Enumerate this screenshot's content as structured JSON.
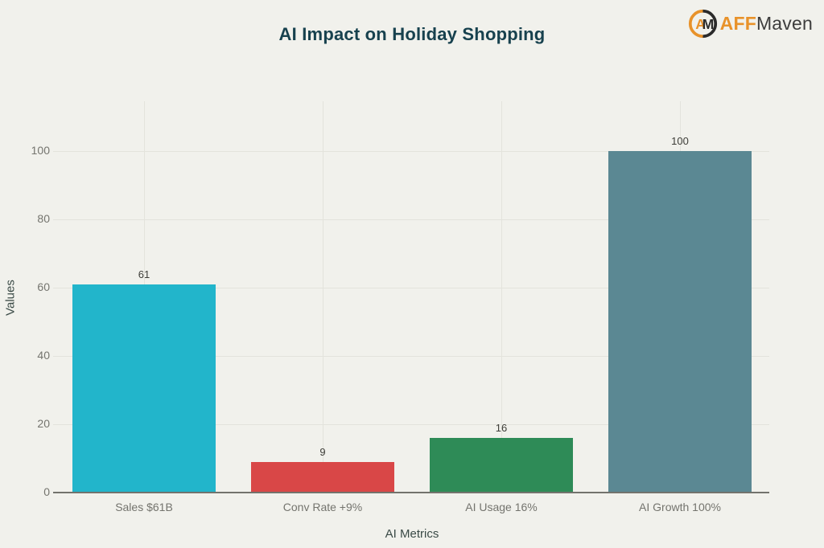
{
  "page": {
    "background_color": "#f1f1ec"
  },
  "header": {
    "title": "AI Impact on Holiday Shopping",
    "title_color": "#17414e",
    "logo": {
      "icon": "am-circle-monogram",
      "icon_letter_a": "A",
      "icon_letter_m": "M",
      "prefix": "AFF",
      "suffix": "Maven",
      "prefix_color": "#e8922a",
      "suffix_color": "#3d3d3d",
      "icon_orange": "#e8922a",
      "icon_black": "#2b2b2b"
    }
  },
  "chart_data": {
    "type": "bar",
    "title": "AI Impact on Holiday Shopping",
    "xlabel": "AI Metrics",
    "ylabel": "Values",
    "categories": [
      "Sales $61B",
      "Conv Rate +9%",
      "AI Usage 16%",
      "AI Growth 100%"
    ],
    "values": [
      61,
      9,
      16,
      100
    ],
    "bar_colors": [
      "#22b5cb",
      "#d94747",
      "#2e8b57",
      "#5b8893"
    ],
    "yticks": [
      0,
      20,
      40,
      60,
      80,
      100
    ],
    "ylim": [
      0,
      100
    ],
    "grid": true,
    "legend": false,
    "value_labels_shown": true
  },
  "axes": {
    "tick_label_color": "#74746e",
    "axis_title_color": "#3a4a46",
    "value_label_color": "#3d3d38",
    "gridline_color": "#e3e3dc",
    "baseline_color": "#73736d"
  }
}
